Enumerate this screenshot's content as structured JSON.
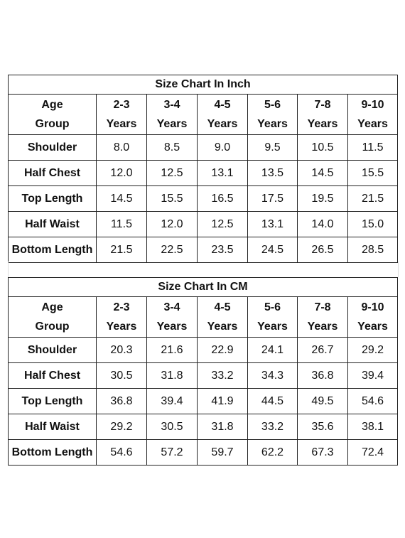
{
  "tables": [
    {
      "title": "Size Chart In Inch",
      "header": [
        "Age Group",
        "2-3 Years",
        "3-4 Years",
        "4-5 Years",
        "5-6 Years",
        "7-8 Years",
        "9-10 Years"
      ],
      "rows": [
        {
          "label": "Shoulder",
          "values": [
            "8.0",
            "8.5",
            "9.0",
            "9.5",
            "10.5",
            "11.5"
          ]
        },
        {
          "label": "Half Chest",
          "values": [
            "12.0",
            "12.5",
            "13.1",
            "13.5",
            "14.5",
            "15.5"
          ]
        },
        {
          "label": "Top Length",
          "values": [
            "14.5",
            "15.5",
            "16.5",
            "17.5",
            "19.5",
            "21.5"
          ]
        },
        {
          "label": "Half Waist",
          "values": [
            "11.5",
            "12.0",
            "12.5",
            "13.1",
            "14.0",
            "15.0"
          ]
        },
        {
          "label": "Bottom Length",
          "values": [
            "21.5",
            "22.5",
            "23.5",
            "24.5",
            "26.5",
            "28.5"
          ]
        }
      ]
    },
    {
      "title": "Size Chart In CM",
      "header": [
        "Age Group",
        "2-3 Years",
        "3-4 Years",
        "4-5 Years",
        "5-6 Years",
        "7-8 Years",
        "9-10 Years"
      ],
      "rows": [
        {
          "label": "Shoulder",
          "values": [
            "20.3",
            "21.6",
            "22.9",
            "24.1",
            "26.7",
            "29.2"
          ]
        },
        {
          "label": "Half Chest",
          "values": [
            "30.5",
            "31.8",
            "33.2",
            "34.3",
            "36.8",
            "39.4"
          ]
        },
        {
          "label": "Top Length",
          "values": [
            "36.8",
            "39.4",
            "41.9",
            "44.5",
            "49.5",
            "54.6"
          ]
        },
        {
          "label": "Half Waist",
          "values": [
            "29.2",
            "30.5",
            "31.8",
            "33.2",
            "35.6",
            "38.1"
          ]
        },
        {
          "label": "Bottom Length",
          "values": [
            "54.6",
            "57.2",
            "59.7",
            "62.2",
            "67.3",
            "72.4"
          ]
        }
      ]
    }
  ]
}
